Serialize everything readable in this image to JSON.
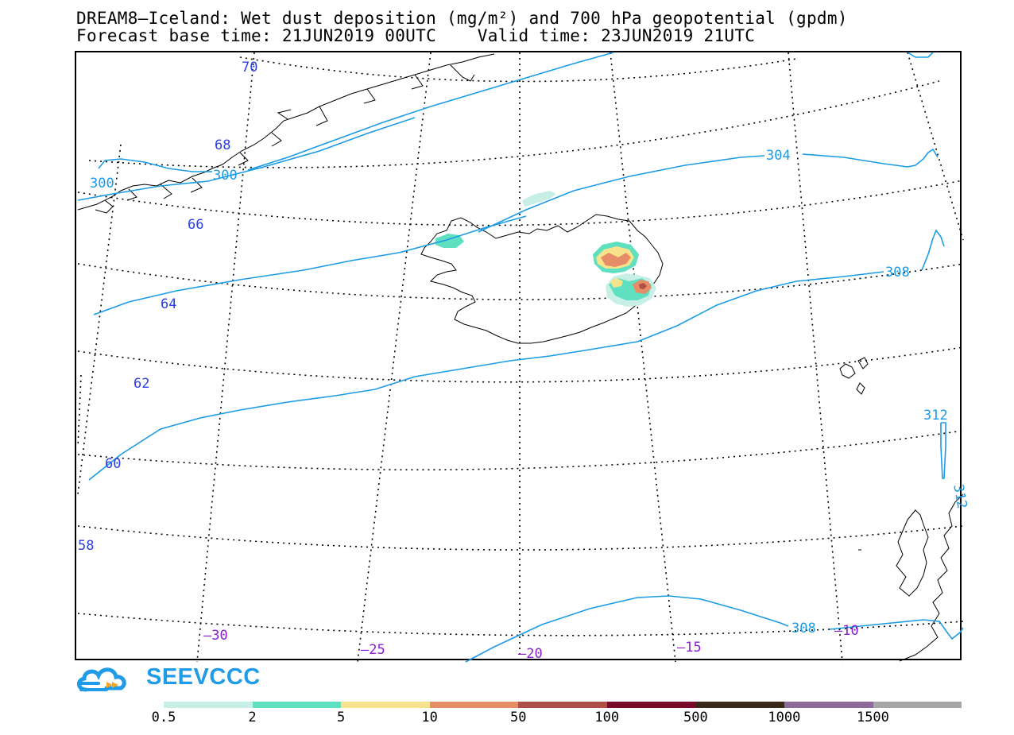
{
  "title_line1": "DREAM8—Iceland: Wet dust deposition (mg/m²) and 700 hPa geopotential (gpdm)",
  "title_line2": "Forecast base time: 21JUN2019 00UTC    Valid time: 23JUN2019 21UTC",
  "map": {
    "latitude_labels": [
      "70",
      "68",
      "66",
      "64",
      "62",
      "60",
      "58"
    ],
    "longitude_labels": [
      "–30",
      "–25",
      "–20",
      "–15",
      "–10"
    ],
    "contour_labels": [
      "300",
      "300",
      "304",
      "308",
      "312",
      "312",
      "308"
    ],
    "colors": {
      "graticule": "#000000",
      "coastline": "#000000",
      "contour": "#1b9be6",
      "lat_label": "#2b3fe0",
      "lon_label": "#8a1fd0"
    }
  },
  "logo": {
    "text": "SEEVCCC",
    "icon": "cloud-logo-icon"
  },
  "legend": {
    "labels": [
      "0.5",
      "2",
      "5",
      "10",
      "50",
      "100",
      "500",
      "1000",
      "1500"
    ],
    "colors": [
      "#c7efe6",
      "#5fe0c0",
      "#f6e38c",
      "#e68c66",
      "#ad4f46",
      "#7a0a2a",
      "#3a2818",
      "#8e6a9a",
      "#a6a6a6"
    ]
  }
}
